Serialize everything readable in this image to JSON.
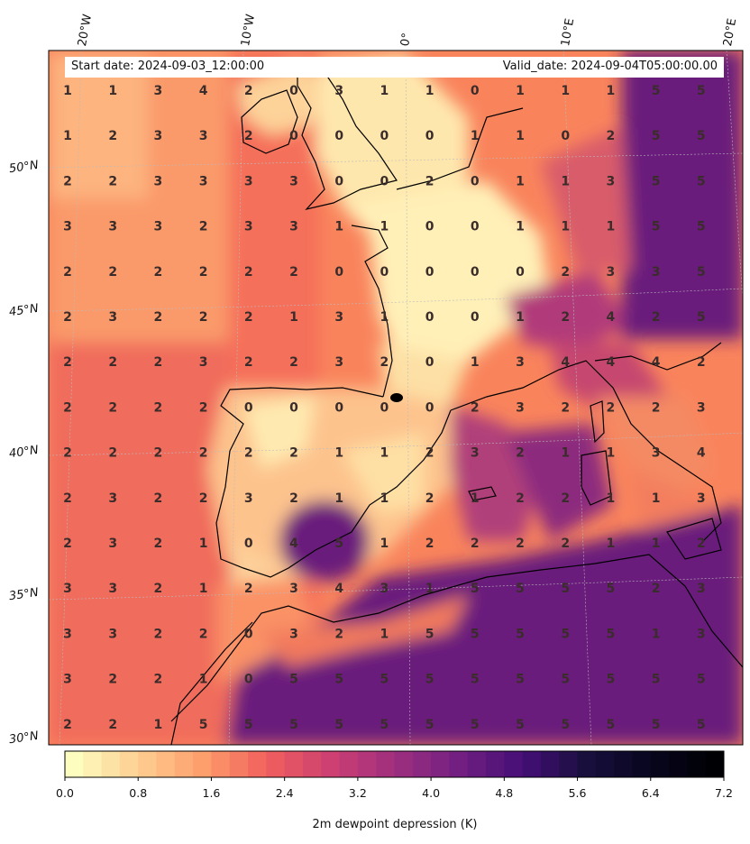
{
  "header": {
    "start_date": "Start date: 2024-09-03_12:00:00",
    "valid_date": "Valid_date: 2024-09-04T05:00:00.00"
  },
  "longitude_labels": [
    "20°W",
    "10°W",
    "0°",
    "10°E",
    "20°E"
  ],
  "latitude_labels": [
    "50°N",
    "45°N",
    "40°N",
    "35°N",
    "30°N"
  ],
  "colorbar": {
    "label": "2m dewpoint depression (K)",
    "ticks": [
      "0.0",
      "0.8",
      "1.6",
      "2.4",
      "3.2",
      "4.0",
      "4.8",
      "5.6",
      "6.4",
      "7.2"
    ],
    "min": 0.0,
    "max": 7.2,
    "colormap": "magma_r",
    "levels": 36
  },
  "grid_values": [
    [
      1,
      1,
      3,
      4,
      2,
      0,
      3,
      1,
      1,
      0,
      1,
      1,
      1,
      5,
      5
    ],
    [
      1,
      2,
      3,
      3,
      2,
      0,
      0,
      0,
      0,
      1,
      1,
      0,
      2,
      5,
      5
    ],
    [
      2,
      2,
      3,
      3,
      3,
      3,
      0,
      0,
      2,
      0,
      1,
      1,
      3,
      5,
      5
    ],
    [
      3,
      3,
      3,
      2,
      3,
      3,
      1,
      1,
      0,
      0,
      1,
      1,
      1,
      5,
      5
    ],
    [
      2,
      2,
      2,
      2,
      2,
      2,
      0,
      0,
      0,
      0,
      0,
      2,
      3,
      3,
      5
    ],
    [
      2,
      3,
      2,
      2,
      2,
      1,
      3,
      1,
      0,
      0,
      1,
      2,
      4,
      2,
      5
    ],
    [
      2,
      2,
      2,
      3,
      2,
      2,
      3,
      2,
      0,
      1,
      3,
      4,
      4,
      4,
      2
    ],
    [
      2,
      2,
      2,
      2,
      0,
      0,
      0,
      0,
      0,
      2,
      3,
      2,
      2,
      2,
      3
    ],
    [
      2,
      2,
      2,
      2,
      2,
      2,
      1,
      1,
      2,
      3,
      2,
      1,
      1,
      3,
      4
    ],
    [
      2,
      3,
      2,
      2,
      3,
      2,
      1,
      1,
      2,
      1,
      2,
      2,
      1,
      1,
      3
    ],
    [
      2,
      3,
      2,
      1,
      0,
      4,
      5,
      1,
      2,
      2,
      2,
      2,
      1,
      1,
      2
    ],
    [
      3,
      3,
      2,
      1,
      2,
      3,
      4,
      3,
      1,
      5,
      5,
      5,
      5,
      2,
      3
    ],
    [
      3,
      3,
      2,
      2,
      0,
      3,
      2,
      1,
      5,
      5,
      5,
      5,
      5,
      1,
      3
    ],
    [
      3,
      2,
      2,
      1,
      0,
      5,
      5,
      5,
      5,
      5,
      5,
      5,
      5,
      5,
      5
    ],
    [
      2,
      2,
      1,
      5,
      5,
      5,
      5,
      5,
      5,
      5,
      5,
      5,
      5,
      5,
      5
    ]
  ]
}
